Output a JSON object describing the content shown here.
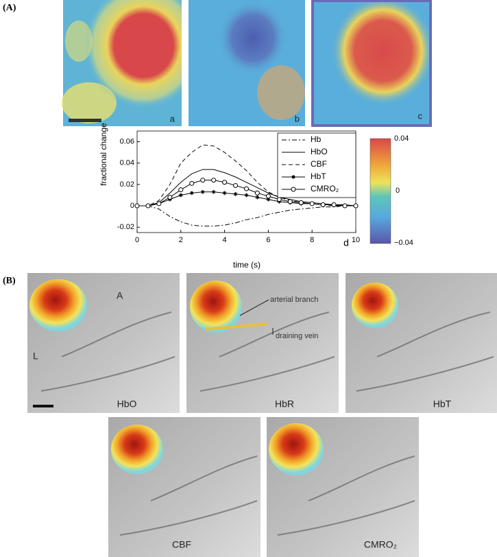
{
  "panel_a": {
    "label": "(A)",
    "image_labels": [
      "a",
      "b",
      "c"
    ]
  },
  "chart_data": {
    "type": "line",
    "panel_label": "d",
    "x_label": "time (s)",
    "y_label": "fractional change",
    "x": [
      0,
      0.5,
      1,
      1.5,
      2,
      2.5,
      3,
      3.5,
      4,
      4.5,
      5,
      5.5,
      6,
      6.5,
      7,
      7.5,
      8,
      8.5,
      9,
      9.5,
      10
    ],
    "series": [
      {
        "name": "Hb",
        "color": "#000000",
        "linestyle": "dashdot",
        "marker": "none",
        "values": [
          0,
          0,
          -0.003,
          -0.01,
          -0.015,
          -0.018,
          -0.019,
          -0.019,
          -0.018,
          -0.016,
          -0.013,
          -0.011,
          -0.008,
          -0.006,
          -0.004,
          -0.003,
          -0.002,
          -0.001,
          -0.001,
          0,
          0
        ]
      },
      {
        "name": "HbO",
        "color": "#000000",
        "linestyle": "solid",
        "marker": "none",
        "values": [
          0,
          0,
          0.003,
          0.012,
          0.022,
          0.03,
          0.034,
          0.034,
          0.031,
          0.027,
          0.022,
          0.017,
          0.012,
          0.008,
          0.006,
          0.004,
          0.003,
          0.002,
          0.001,
          0.001,
          0
        ]
      },
      {
        "name": "CBF",
        "color": "#000000",
        "linestyle": "dashed",
        "marker": "none",
        "values": [
          0,
          0,
          0.005,
          0.02,
          0.04,
          0.05,
          0.057,
          0.056,
          0.05,
          0.042,
          0.033,
          0.022,
          0.013,
          0.008,
          0.005,
          0.003,
          0.002,
          0.001,
          0,
          0,
          0
        ]
      },
      {
        "name": "HbT",
        "color": "#000000",
        "linestyle": "solid",
        "marker": "star",
        "values": [
          0,
          0,
          0.002,
          0.006,
          0.01,
          0.012,
          0.013,
          0.013,
          0.012,
          0.011,
          0.01,
          0.008,
          0.006,
          0.004,
          0.003,
          0.002,
          0.002,
          0.001,
          0.001,
          0,
          0
        ]
      },
      {
        "name": "CMRO₂",
        "color": "#000000",
        "linestyle": "solid",
        "marker": "circle",
        "values": [
          0,
          0,
          0.002,
          0.008,
          0.015,
          0.021,
          0.024,
          0.024,
          0.022,
          0.019,
          0.016,
          0.012,
          0.009,
          0.006,
          0.004,
          0.003,
          0.002,
          0.001,
          0.001,
          0,
          0
        ]
      }
    ],
    "xlim": [
      0,
      10
    ],
    "xticks": [
      0,
      2,
      4,
      6,
      8,
      10
    ],
    "ylim": [
      -0.025,
      0.07
    ],
    "yticks": [
      -0.02,
      0,
      0.02,
      0.04,
      0.06
    ],
    "legend": "upper right"
  },
  "colorbar": {
    "labels": [
      "0.04",
      "0",
      "−0.04"
    ]
  },
  "panel_b": {
    "label": "(B)",
    "images": [
      "HbO",
      "HbR",
      "HbT",
      "CBF",
      "CMRO₂"
    ],
    "annotations": [
      "A",
      "L",
      "arterial branch",
      "draining vein"
    ]
  }
}
